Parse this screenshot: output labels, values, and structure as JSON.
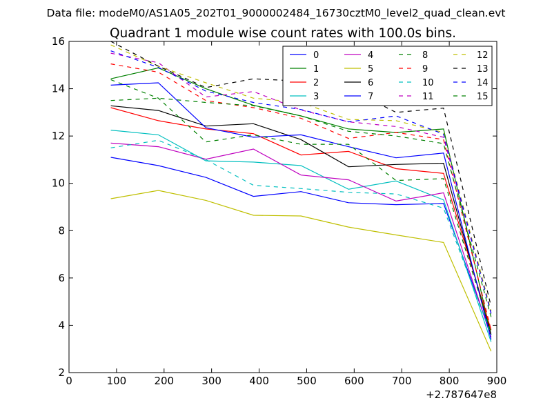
{
  "chart_data": {
    "type": "line",
    "suptitle": "Data file: modeM0/AS1A05_202T01_9000002484_16730cztM0_level2_quad_clean.evt",
    "title": "Quadrant 1 module wise count rates with 100.0s bins.",
    "xlabel": "",
    "ylabel": "",
    "x_offset_label": "+2.787647e8",
    "xlim": [
      0,
      900
    ],
    "ylim": [
      2,
      16
    ],
    "x_ticks": [
      0,
      100,
      200,
      300,
      400,
      500,
      600,
      700,
      800,
      900
    ],
    "y_ticks": [
      2,
      4,
      6,
      8,
      10,
      12,
      14,
      16
    ],
    "grid": false,
    "legend_position": "top-right",
    "legend_columns": 4,
    "x": [
      88,
      188,
      288,
      388,
      488,
      588,
      688,
      788,
      888
    ],
    "series": [
      {
        "name": "0",
        "color": "#0000ff",
        "style": "solid",
        "values": [
          11.1,
          10.75,
          10.25,
          9.45,
          9.65,
          9.18,
          9.1,
          9.15,
          3.6
        ]
      },
      {
        "name": "1",
        "color": "#008000",
        "style": "solid",
        "values": [
          14.42,
          14.88,
          14.0,
          13.3,
          12.85,
          12.3,
          12.15,
          12.3,
          3.6
        ]
      },
      {
        "name": "2",
        "color": "#ff0000",
        "style": "solid",
        "values": [
          13.2,
          12.65,
          12.3,
          12.1,
          11.2,
          11.35,
          10.62,
          10.42,
          3.8
        ]
      },
      {
        "name": "3",
        "color": "#00bfbf",
        "style": "solid",
        "values": [
          12.25,
          12.05,
          10.95,
          10.9,
          10.75,
          9.75,
          10.1,
          9.3,
          3.3
        ]
      },
      {
        "name": "4",
        "color": "#bf00bf",
        "style": "solid",
        "values": [
          11.7,
          11.55,
          11.02,
          11.45,
          10.35,
          10.15,
          9.25,
          9.6,
          3.5
        ]
      },
      {
        "name": "5",
        "color": "#bfbf00",
        "style": "solid",
        "values": [
          9.35,
          9.7,
          9.28,
          8.65,
          8.62,
          8.15,
          7.82,
          7.5,
          2.9
        ]
      },
      {
        "name": "6",
        "color": "#000000",
        "style": "solid",
        "values": [
          13.28,
          13.08,
          12.42,
          12.52,
          11.85,
          10.7,
          10.8,
          10.85,
          3.6
        ]
      },
      {
        "name": "7",
        "color": "#0000ff",
        "style": "solid",
        "values": [
          14.15,
          14.25,
          12.35,
          11.95,
          12.05,
          11.55,
          11.08,
          11.28,
          3.4
        ]
      },
      {
        "name": "8",
        "color": "#008000",
        "style": "dashed",
        "values": [
          14.38,
          13.6,
          11.75,
          12.05,
          11.65,
          11.65,
          10.12,
          10.2,
          3.7
        ]
      },
      {
        "name": "9",
        "color": "#ff0000",
        "style": "dashed",
        "values": [
          15.05,
          14.7,
          13.5,
          13.2,
          12.75,
          11.9,
          12.15,
          11.85,
          3.8
        ]
      },
      {
        "name": "10",
        "color": "#00bfbf",
        "style": "dashed",
        "values": [
          11.5,
          11.82,
          11.0,
          9.92,
          9.78,
          9.62,
          9.55,
          8.95,
          3.6
        ]
      },
      {
        "name": "11",
        "color": "#bf00bf",
        "style": "dashed",
        "values": [
          15.5,
          15.1,
          13.65,
          13.88,
          13.1,
          12.6,
          12.4,
          11.95,
          4.5
        ]
      },
      {
        "name": "12",
        "color": "#bfbf00",
        "style": "dashed",
        "values": [
          15.85,
          14.95,
          14.25,
          13.6,
          13.42,
          12.7,
          12.65,
          12.15,
          4.6
        ]
      },
      {
        "name": "13",
        "color": "#000000",
        "style": "dashed",
        "values": [
          16.0,
          14.95,
          14.05,
          14.42,
          14.32,
          14.02,
          13.0,
          13.18,
          4.8
        ]
      },
      {
        "name": "14",
        "color": "#0000ff",
        "style": "dashed",
        "values": [
          15.6,
          14.9,
          13.9,
          13.42,
          13.12,
          12.6,
          12.85,
          12.08,
          4.5
        ]
      },
      {
        "name": "15",
        "color": "#008000",
        "style": "dashed",
        "values": [
          13.5,
          13.6,
          13.42,
          13.28,
          12.85,
          12.2,
          12.0,
          11.68,
          4.35
        ]
      }
    ]
  }
}
